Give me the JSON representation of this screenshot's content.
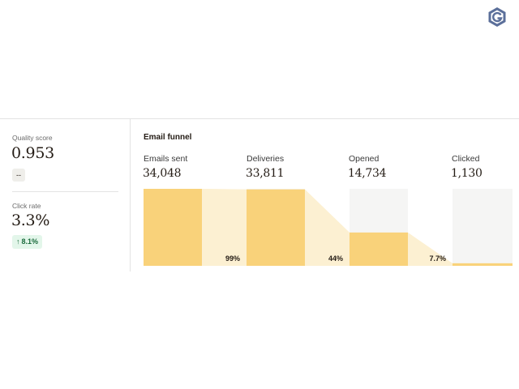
{
  "brand": {
    "logo_icon": "intuit-mailchimp-logo-icon"
  },
  "metrics": {
    "quality": {
      "label": "Quality score",
      "value": "0.953",
      "badge": "--"
    },
    "click_rate": {
      "label": "Click rate",
      "value": "3.3%",
      "change": "8.1%",
      "change_icon": "arrow-up-icon"
    }
  },
  "funnel": {
    "title": "Email funnel",
    "stages": [
      {
        "label": "Emails sent",
        "value": "34,048"
      },
      {
        "label": "Deliveries",
        "value": "33,811"
      },
      {
        "label": "Opened",
        "value": "14,734"
      },
      {
        "label": "Clicked",
        "value": "1,130"
      }
    ],
    "conversions": [
      "99%",
      "44%",
      "7.7%"
    ],
    "colors": {
      "bar": "#f9d27a",
      "connector": "#fcf0d2",
      "track": "#f5f5f4"
    }
  }
}
